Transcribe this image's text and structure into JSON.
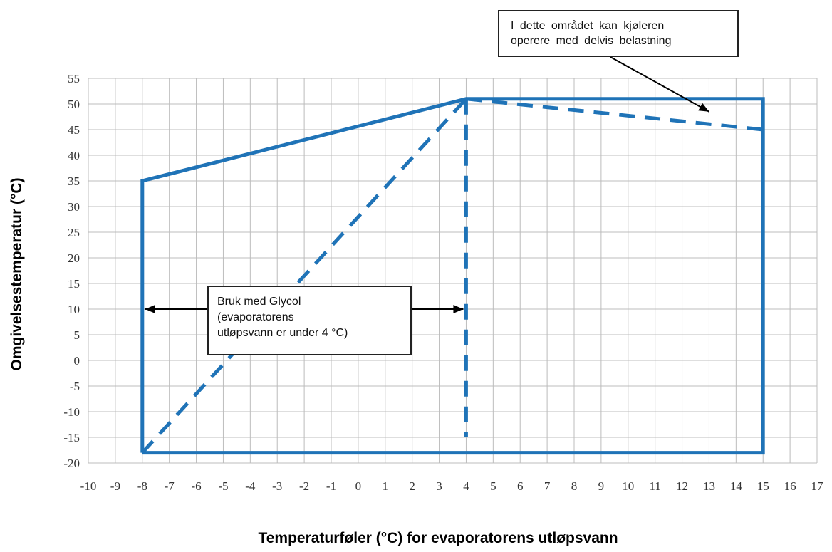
{
  "chart_data": {
    "type": "line",
    "xlabel": "Temperaturføler (°C) for evaporatorens utløpsvann",
    "ylabel": "Omgivelsestemperatur (°C)",
    "xlim": [
      -10,
      17
    ],
    "ylim": [
      -20,
      55
    ],
    "xticks": [
      -10,
      -9,
      -8,
      -7,
      -6,
      -5,
      -4,
      -3,
      -2,
      -1,
      0,
      1,
      2,
      3,
      4,
      5,
      6,
      7,
      8,
      9,
      10,
      11,
      12,
      13,
      14,
      15,
      16,
      17
    ],
    "yticks": [
      -20,
      -15,
      -10,
      -5,
      0,
      5,
      10,
      15,
      20,
      25,
      30,
      35,
      40,
      45,
      50,
      55
    ],
    "grid": true,
    "series": [
      {
        "style": "solid",
        "x": [
          -8,
          -8,
          4,
          15,
          15,
          -8
        ],
        "y": [
          -18,
          35,
          51,
          51,
          -18,
          -18
        ]
      },
      {
        "style": "dashed",
        "x": [
          -8,
          4
        ],
        "y": [
          -18,
          51
        ]
      },
      {
        "style": "dashed",
        "x": [
          4,
          4
        ],
        "y": [
          51,
          -15
        ]
      },
      {
        "style": "dashed",
        "x": [
          4,
          15
        ],
        "y": [
          51,
          45
        ]
      }
    ],
    "annotations": [
      {
        "lines": [
          "I dette området kan kjøleren",
          "operere med delvis belastning"
        ],
        "arrow_to": {
          "x": 13,
          "y": 48.5
        }
      },
      {
        "lines": [
          "Bruk med Glycol",
          "(evaporatorens",
          "utløpsvann er under 4 °C)"
        ],
        "arrows_to": [
          {
            "x": -8,
            "y": 10
          },
          {
            "x": 4,
            "y": 10
          }
        ]
      }
    ],
    "colors": {
      "envelope": "#1f73b7",
      "grid": "#bcbcbc",
      "text": "#333333"
    }
  }
}
